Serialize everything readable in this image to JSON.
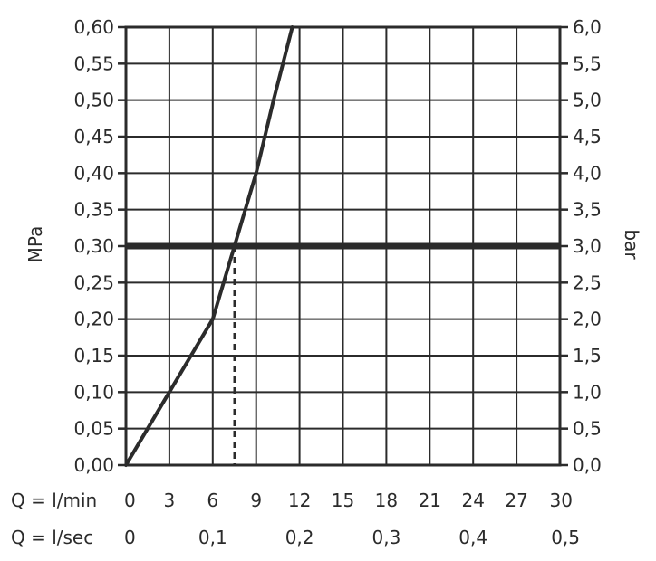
{
  "chart_data": {
    "type": "line",
    "title": "",
    "x": [
      0,
      1.5,
      3,
      4.5,
      6,
      6.75,
      7.5,
      8.25,
      9,
      10.2,
      11.5
    ],
    "series": [
      {
        "values": [
          0,
          0.05,
          0.1,
          0.15,
          0.2,
          0.25,
          0.3,
          0.35,
          0.4,
          0.5,
          0.6
        ]
      }
    ],
    "xlim": [
      0,
      30
    ],
    "ylim": [
      0,
      0.6
    ],
    "x_ticks": [
      "0",
      "3",
      "6",
      "9",
      "12",
      "15",
      "18",
      "21",
      "24",
      "27",
      "30"
    ],
    "x_tick_values": [
      0,
      3,
      6,
      9,
      12,
      15,
      18,
      21,
      24,
      27,
      30
    ],
    "x2_ticks": [
      "0",
      "0,1",
      "0,2",
      "0,3",
      "0,4",
      "0,5"
    ],
    "x2_tick_values": [
      0,
      6,
      12,
      18,
      24,
      30
    ],
    "y_ticks": [
      "0,00",
      "0,05",
      "0,10",
      "0,15",
      "0,20",
      "0,25",
      "0,30",
      "0,35",
      "0,40",
      "0,45",
      "0,50",
      "0,55",
      "0,60"
    ],
    "y_tick_values": [
      0,
      0.05,
      0.1,
      0.15,
      0.2,
      0.25,
      0.3,
      0.35,
      0.4,
      0.45,
      0.5,
      0.55,
      0.6
    ],
    "y2_ticks": [
      "0,0",
      "0,5",
      "1,0",
      "1,5",
      "2,0",
      "2,5",
      "3,0",
      "3,5",
      "4,0",
      "4,5",
      "5,0",
      "5,5",
      "6,0"
    ],
    "xlabel": "Q = l/min",
    "x2label": "Q = l/sec",
    "ylabel": "MPa",
    "y2label": "bar",
    "reference_line": {
      "y": 0.3
    },
    "marker": {
      "x": 7.5,
      "y": 0.3
    },
    "grid": true,
    "colors": {
      "line": "#2b2b2b",
      "grid": "#2b2b2b"
    }
  }
}
